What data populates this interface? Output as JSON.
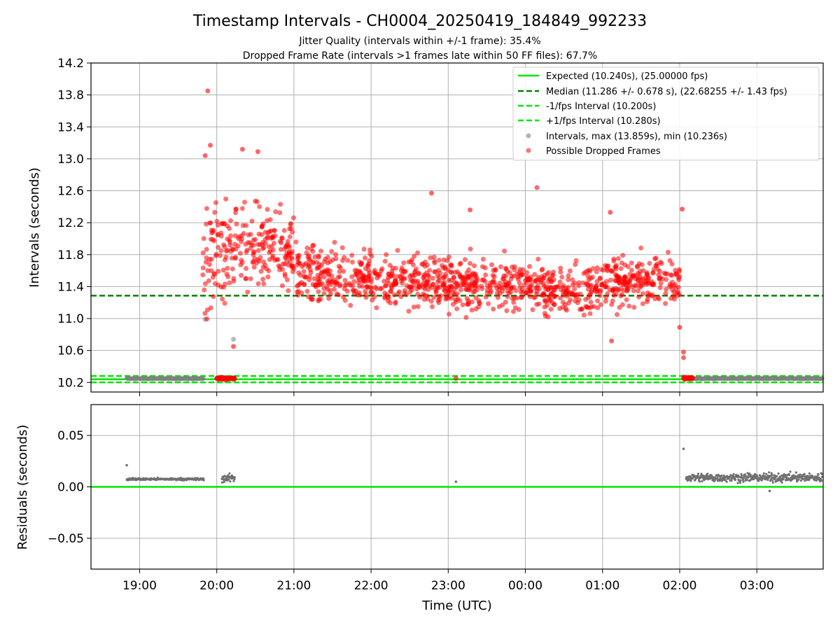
{
  "chart_data": {
    "type": "scatter",
    "title": "Timestamp Intervals - CH0004_20250419_184849_992233",
    "subtitle_lines": [
      "Jitter Quality (intervals within +/-1 frame): 35.4%",
      "Dropped Frame Rate (intervals >1 frames late within 50 FF files): 67.7%"
    ],
    "xlabel": "Time (UTC)",
    "x_ticks": [
      "19:00",
      "20:00",
      "21:00",
      "22:00",
      "23:00",
      "00:00",
      "01:00",
      "02:00",
      "03:00"
    ],
    "x_range_hours": [
      18.37,
      27.86
    ],
    "legend_position": "top-right",
    "grid": true,
    "top_panel": {
      "ylabel": "Intervals (seconds)",
      "ylim": [
        10.08,
        14.2
      ],
      "y_ticks": [
        "10.2",
        "10.6",
        "11.0",
        "11.4",
        "11.8",
        "12.2",
        "12.6",
        "13.0",
        "13.4",
        "13.8",
        "14.2"
      ],
      "series": [
        {
          "name": "Expected (10.240s), (25.00000 fps)",
          "kind": "line",
          "y": 10.24,
          "color": "#00e600"
        },
        {
          "name": "Median (11.286 +/- 0.678 s), (22.68255 +/- 1.43 fps)",
          "kind": "dashed-line",
          "y": 11.286,
          "color": "#008000"
        },
        {
          "name": "-1/fps Interval (10.200s)",
          "kind": "dashed-line",
          "y": 10.2,
          "color": "#00e600"
        },
        {
          "name": "+1/fps Interval (10.280s)",
          "kind": "dashed-line",
          "y": 10.28,
          "color": "#00e600"
        },
        {
          "name": "Intervals, max (13.859s), min (10.236s)",
          "kind": "points",
          "color": "#808080"
        },
        {
          "name": "Possible Dropped Frames",
          "kind": "points",
          "color": "#ff0000"
        }
      ],
      "normal_intervals": {
        "segments": [
          {
            "start": "18:50",
            "end": "19:50",
            "y": 10.248
          },
          {
            "start": "20:04",
            "end": "20:14",
            "y": 10.249
          },
          {
            "start": "02:05",
            "end": "03:52",
            "y": 10.249
          }
        ],
        "outliers": [
          {
            "time": "20:13",
            "y": 10.74
          },
          {
            "time": "19:51",
            "y": 10.99
          }
        ]
      },
      "dropped_frames": {
        "clusters": [
          {
            "start": "19:49",
            "end": "20:00",
            "center": 11.7,
            "spread": 0.75
          },
          {
            "start": "20:00",
            "end": "20:10",
            "center": 11.9,
            "spread": 0.6
          },
          {
            "start": "20:10",
            "end": "21:00",
            "center": 11.85,
            "spread": 0.45
          },
          {
            "start": "21:00",
            "end": "22:00",
            "center": 11.55,
            "spread": 0.3
          },
          {
            "start": "22:00",
            "end": "23:00",
            "center": 11.48,
            "spread": 0.3
          },
          {
            "start": "23:00",
            "end": "00:00",
            "center": 11.42,
            "spread": 0.28
          },
          {
            "start": "00:00",
            "end": "01:00",
            "center": 11.38,
            "spread": 0.26
          },
          {
            "start": "01:00",
            "end": "02:00",
            "center": 11.45,
            "spread": 0.28
          }
        ],
        "marked": [
          {
            "time": "19:53",
            "y": 13.85
          },
          {
            "time": "19:55",
            "y": 13.17
          },
          {
            "time": "19:51",
            "y": 13.04
          },
          {
            "time": "20:20",
            "y": 13.12
          },
          {
            "time": "20:32",
            "y": 13.09
          },
          {
            "time": "20:13",
            "y": 10.65
          },
          {
            "time": "22:47",
            "y": 12.57
          },
          {
            "time": "23:17",
            "y": 12.36
          },
          {
            "time": "00:09",
            "y": 12.64
          },
          {
            "time": "01:06",
            "y": 12.33
          },
          {
            "time": "01:07",
            "y": 10.72
          },
          {
            "time": "02:00",
            "y": 10.89
          },
          {
            "time": "02:02",
            "y": 12.37
          },
          {
            "time": "02:03",
            "y": 10.58
          },
          {
            "time": "02:03",
            "y": 10.51
          },
          {
            "time": "23:06",
            "y": 10.25
          }
        ],
        "tail_segments": [
          {
            "start": "20:00",
            "end": "20:14",
            "y": 10.25
          },
          {
            "start": "02:03",
            "end": "02:10",
            "y": 10.255
          }
        ]
      }
    },
    "bottom_panel": {
      "ylabel": "Residuals (seconds)",
      "ylim": [
        -0.08,
        0.08
      ],
      "y_ticks": [
        "−0.05",
        "0.00",
        "0.05"
      ],
      "zero_line_color": "#00e600",
      "residuals": {
        "segments": [
          {
            "start": "18:50",
            "end": "19:50",
            "y": 0.0075,
            "spread": 0.001
          },
          {
            "start": "20:04",
            "end": "20:14",
            "y": 0.0085,
            "spread": 0.004
          },
          {
            "start": "02:05",
            "end": "03:52",
            "y": 0.009,
            "spread": 0.004
          }
        ],
        "outliers": [
          {
            "time": "18:50",
            "y": 0.021
          },
          {
            "time": "02:03",
            "y": 0.037
          },
          {
            "time": "23:06",
            "y": 0.005
          },
          {
            "time": "03:10",
            "y": -0.004
          }
        ]
      }
    }
  }
}
